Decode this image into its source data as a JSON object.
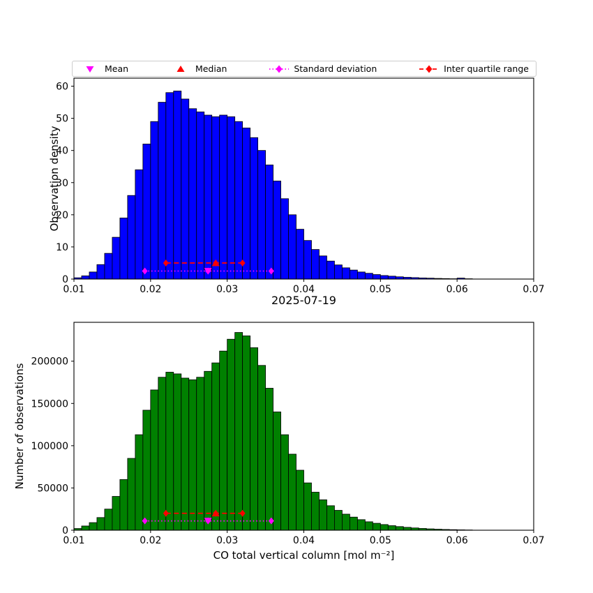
{
  "figure": {
    "title": "2025-07-19",
    "xlabel": "CO total vertical column [mol m⁻²]",
    "background": "#ffffff",
    "colors": {
      "mean_std": "#ff00ff",
      "median_iqr": "#ff0000",
      "axis": "#000000"
    },
    "legend": [
      {
        "label": "Mean",
        "marker": "triangle-down",
        "color": "#ff00ff",
        "line": "none"
      },
      {
        "label": "Median",
        "marker": "triangle-up",
        "color": "#ff0000",
        "line": "none"
      },
      {
        "label": "Standard deviation",
        "marker": "diamond",
        "color": "#ff00ff",
        "line": "dotted"
      },
      {
        "label": "Inter quartile range",
        "marker": "diamond",
        "color": "#ff0000",
        "line": "dashed"
      }
    ]
  },
  "chart_data": [
    {
      "type": "bar",
      "panel": "top",
      "ylabel": "Observation density",
      "bar_color": "#0000ff",
      "edge_color": "#000000",
      "bin_start": 0.01,
      "bin_width": 0.001,
      "xlim": [
        0.01,
        0.07
      ],
      "ylim": [
        0,
        62.5
      ],
      "xticks": [
        0.01,
        0.02,
        0.03,
        0.04,
        0.05,
        0.06,
        0.07
      ],
      "yticks": [
        0,
        10,
        20,
        30,
        40,
        50,
        60
      ],
      "grid": false,
      "values": [
        0.4,
        1.0,
        2.2,
        4.5,
        8.0,
        13.0,
        19.0,
        26.0,
        34.0,
        42.0,
        49.0,
        55.0,
        58.0,
        58.5,
        56.0,
        53.0,
        52.0,
        51.0,
        50.5,
        51.0,
        50.5,
        49.0,
        47.0,
        44.0,
        40.0,
        35.5,
        30.5,
        25.0,
        20.0,
        15.5,
        12.0,
        9.2,
        7.2,
        5.6,
        4.4,
        3.5,
        2.8,
        2.2,
        1.8,
        1.4,
        1.1,
        0.9,
        0.7,
        0.55,
        0.45,
        0.35,
        0.28,
        0.2,
        0.15,
        0.1,
        0.3,
        0.1
      ],
      "stats": {
        "mean": 0.0275,
        "std": 0.00825,
        "median": 0.0285,
        "q1": 0.022,
        "q3": 0.032,
        "std_marker_y": 2.5,
        "iqr_marker_y": 5.0
      }
    },
    {
      "type": "bar",
      "panel": "bottom",
      "ylabel": "Number of observations",
      "bar_color": "#008000",
      "edge_color": "#000000",
      "bin_start": 0.01,
      "bin_width": 0.001,
      "xlim": [
        0.01,
        0.07
      ],
      "ylim": [
        0,
        246000
      ],
      "xticks": [
        0.01,
        0.02,
        0.03,
        0.04,
        0.05,
        0.06,
        0.07
      ],
      "yticks": [
        0,
        50000,
        100000,
        150000,
        200000
      ],
      "grid": false,
      "values": [
        2000,
        5000,
        9000,
        15000,
        25000,
        40000,
        60000,
        85000,
        113000,
        142000,
        166000,
        181000,
        187000,
        185000,
        180000,
        178000,
        181000,
        188000,
        198000,
        212000,
        226000,
        234000,
        230000,
        216000,
        195000,
        168000,
        140000,
        113000,
        90000,
        71000,
        56000,
        45000,
        36000,
        29000,
        23500,
        19000,
        15500,
        12500,
        10000,
        8200,
        6700,
        5400,
        4300,
        3400,
        2700,
        2100,
        1600,
        1200,
        900,
        650,
        450,
        300
      ],
      "stats": {
        "mean": 0.0275,
        "std": 0.00825,
        "median": 0.0285,
        "q1": 0.022,
        "q3": 0.032,
        "std_marker_y": 11000,
        "iqr_marker_y": 20000
      }
    }
  ]
}
